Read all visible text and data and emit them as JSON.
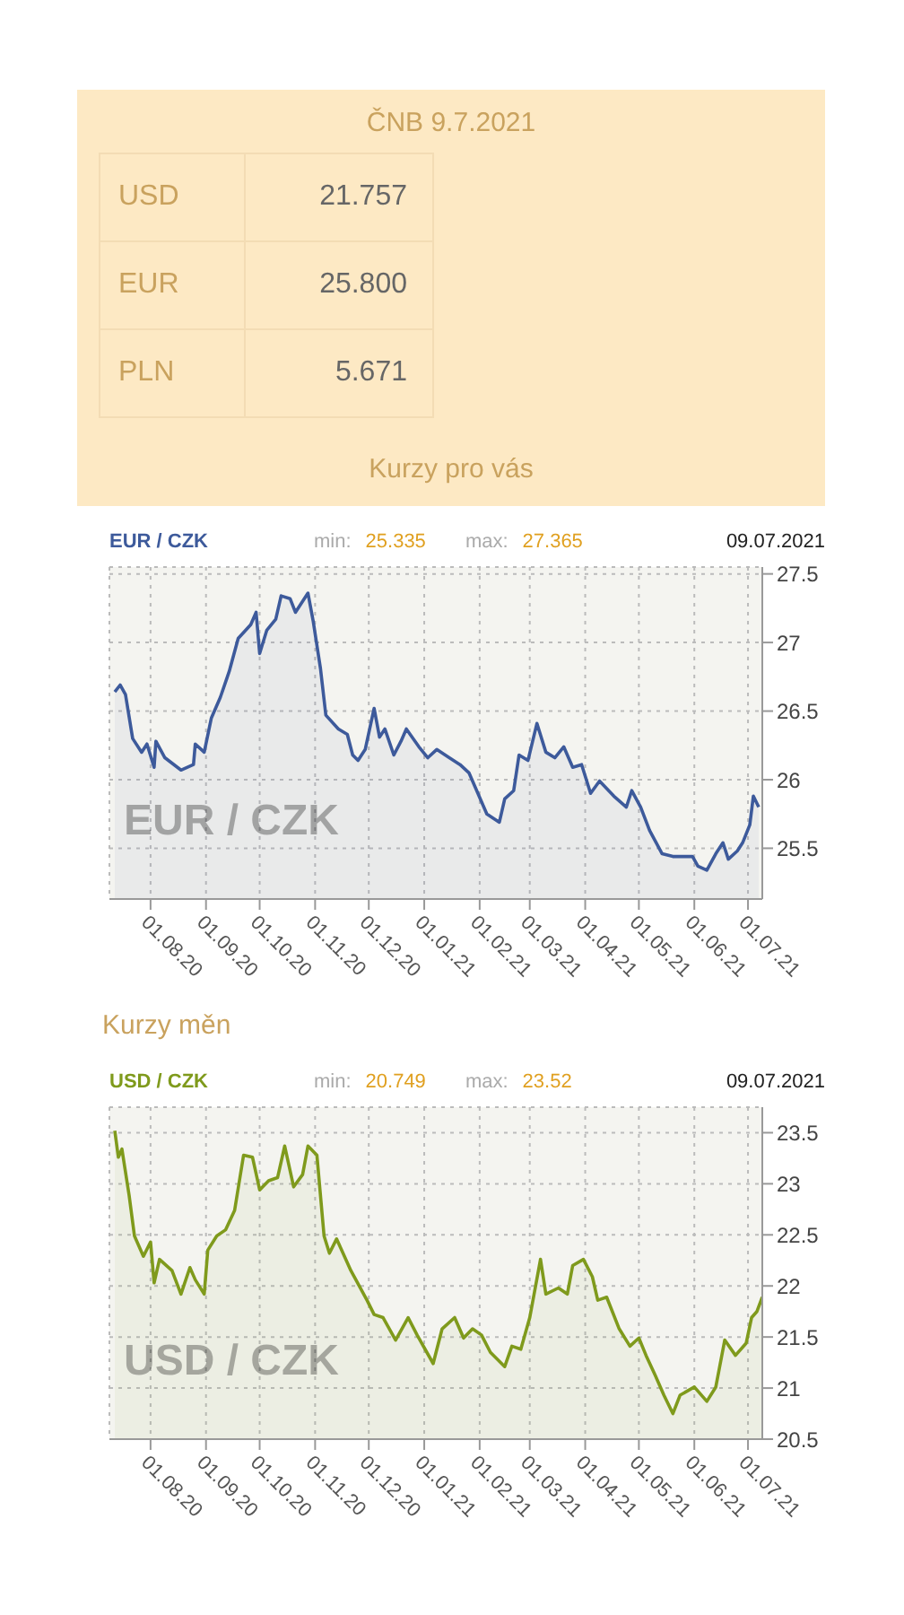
{
  "chart_data": [
    {
      "type": "other",
      "title": "ČNB 9.7.2021",
      "categories": [
        "USD",
        "EUR",
        "PLN"
      ],
      "value_labels": [
        "21.757",
        "25.800",
        "5.671"
      ],
      "annotations": [
        "Kurzy pro vás"
      ]
    },
    {
      "type": "area",
      "title": "EUR / CZK",
      "annotations": [
        "min:",
        "25.335",
        "max:",
        "27.365",
        "09.07.2021",
        "EUR / CZK",
        "Kurzy měn"
      ],
      "xlim": [
        "2020-07-09",
        "2021-07-09"
      ],
      "xticks": [
        {
          "value": "2020-08-01",
          "label": "01.08.20"
        },
        {
          "value": "2020-09-01",
          "label": "01.09.20"
        },
        {
          "value": "2020-10-01",
          "label": "01.10.20"
        },
        {
          "value": "2020-11-01",
          "label": "01.11.20"
        },
        {
          "value": "2020-12-01",
          "label": "01.12.20"
        },
        {
          "value": "2021-01-01",
          "label": "01.01.21"
        },
        {
          "value": "2021-02-01",
          "label": "01.02.21"
        },
        {
          "value": "2021-03-01",
          "label": "01.03.21"
        },
        {
          "value": "2021-04-01",
          "label": "01.04.21"
        },
        {
          "value": "2021-05-01",
          "label": "01.05.21"
        },
        {
          "value": "2021-06-01",
          "label": "01.06.21"
        },
        {
          "value": "2021-07-01",
          "label": "01.07.21"
        }
      ],
      "ylim": [
        25.13,
        27.55
      ],
      "yticks": [
        25.5,
        26,
        26.5,
        27,
        27.5
      ],
      "grid": true,
      "x": [
        "2020-07-12",
        "2020-07-15",
        "2020-07-18",
        "2020-07-22",
        "2020-07-27",
        "2020-07-30",
        "2020-08-03",
        "2020-08-04",
        "2020-08-09",
        "2020-08-18",
        "2020-08-25",
        "2020-08-26",
        "2020-08-31",
        "2020-09-04",
        "2020-09-09",
        "2020-09-14",
        "2020-09-19",
        "2020-09-26",
        "2020-09-29",
        "2020-10-01",
        "2020-10-05",
        "2020-10-10",
        "2020-10-13",
        "2020-10-18",
        "2020-10-21",
        "2020-10-28",
        "2020-10-31",
        "2020-11-04",
        "2020-11-07",
        "2020-11-14",
        "2020-11-19",
        "2020-11-22",
        "2020-11-25",
        "2020-11-29",
        "2020-12-04",
        "2020-12-07",
        "2020-12-10",
        "2020-12-15",
        "2020-12-19",
        "2020-12-22",
        "2020-12-29",
        "2021-01-03",
        "2021-01-08",
        "2021-01-15",
        "2021-01-21",
        "2021-01-26",
        "2021-01-31",
        "2021-02-05",
        "2021-02-12",
        "2021-02-15",
        "2021-02-20",
        "2021-02-23",
        "2021-02-28",
        "2021-03-05",
        "2021-03-10",
        "2021-03-15",
        "2021-03-20",
        "2021-03-25",
        "2021-03-30",
        "2021-04-04",
        "2021-04-09",
        "2021-04-17",
        "2021-04-24",
        "2021-04-27",
        "2021-05-02",
        "2021-05-07",
        "2021-05-14",
        "2021-05-20",
        "2021-05-31",
        "2021-06-03",
        "2021-06-08",
        "2021-06-13",
        "2021-06-17",
        "2021-06-20",
        "2021-06-25",
        "2021-06-28",
        "2021-07-02",
        "2021-07-04",
        "2021-07-07"
      ],
      "series": [
        {
          "color": "#3d5a9b",
          "values": [
            26.64,
            26.69,
            26.62,
            26.3,
            26.2,
            26.26,
            26.09,
            26.28,
            26.16,
            26.07,
            26.11,
            26.26,
            26.2,
            26.45,
            26.6,
            26.79,
            27.03,
            27.13,
            27.22,
            26.92,
            27.09,
            27.17,
            27.34,
            27.32,
            27.22,
            27.36,
            27.15,
            26.81,
            26.47,
            26.37,
            26.33,
            26.18,
            26.14,
            26.22,
            26.52,
            26.31,
            26.37,
            26.18,
            26.28,
            26.37,
            26.24,
            26.16,
            26.22,
            26.16,
            26.11,
            26.05,
            25.9,
            25.75,
            25.69,
            25.86,
            25.92,
            26.18,
            26.14,
            26.41,
            26.2,
            26.16,
            26.24,
            26.09,
            26.11,
            25.9,
            25.99,
            25.88,
            25.8,
            25.92,
            25.8,
            25.63,
            25.46,
            25.44,
            25.44,
            25.37,
            25.34,
            25.46,
            25.54,
            25.42,
            25.48,
            25.54,
            25.67,
            25.88,
            25.8
          ]
        }
      ]
    },
    {
      "type": "area",
      "title": "USD / CZK",
      "annotations": [
        "min:",
        "20.749",
        "max:",
        "23.52",
        "09.07.2021",
        "USD / CZK"
      ],
      "xlim": [
        "2020-07-09",
        "2021-07-09"
      ],
      "xticks": [
        {
          "value": "2020-08-01",
          "label": "01.08.20"
        },
        {
          "value": "2020-09-01",
          "label": "01.09.20"
        },
        {
          "value": "2020-10-01",
          "label": "01.10.20"
        },
        {
          "value": "2020-11-01",
          "label": "01.11.20"
        },
        {
          "value": "2020-12-01",
          "label": "01.12.20"
        },
        {
          "value": "2021-01-01",
          "label": "01.01.21"
        },
        {
          "value": "2021-02-01",
          "label": "01.02.21"
        },
        {
          "value": "2021-03-01",
          "label": "01.03.21"
        },
        {
          "value": "2021-04-01",
          "label": "01.04.21"
        },
        {
          "value": "2021-05-01",
          "label": "01.05.21"
        },
        {
          "value": "2021-06-01",
          "label": "01.06.21"
        },
        {
          "value": "2021-07-01",
          "label": "01.07.21"
        }
      ],
      "ylim": [
        20.5,
        23.75
      ],
      "yticks": [
        20.5,
        21,
        21.5,
        22,
        22.5,
        23,
        23.5
      ],
      "grid": true,
      "x": [
        "2020-07-12",
        "2020-07-14",
        "2020-07-16",
        "2020-07-20",
        "2020-07-23",
        "2020-07-28",
        "2020-08-01",
        "2020-08-03",
        "2020-08-06",
        "2020-08-13",
        "2020-08-18",
        "2020-08-23",
        "2020-08-26",
        "2020-08-31",
        "2020-09-02",
        "2020-09-07",
        "2020-09-12",
        "2020-09-17",
        "2020-09-22",
        "2020-09-27",
        "2020-10-01",
        "2020-10-06",
        "2020-10-11",
        "2020-10-15",
        "2020-10-20",
        "2020-10-25",
        "2020-10-28",
        "2020-11-02",
        "2020-11-06",
        "2020-11-09",
        "2020-11-13",
        "2020-11-21",
        "2020-11-30",
        "2020-12-04",
        "2020-12-09",
        "2020-12-16",
        "2020-12-23",
        "2020-12-28",
        "2021-01-06",
        "2021-01-11",
        "2021-01-18",
        "2021-01-23",
        "2021-01-28",
        "2021-02-02",
        "2021-02-07",
        "2021-02-15",
        "2021-02-19",
        "2021-02-24",
        "2021-03-01",
        "2021-03-07",
        "2021-03-10",
        "2021-03-17",
        "2021-03-22",
        "2021-03-25",
        "2021-03-31",
        "2021-04-05",
        "2021-04-08",
        "2021-04-13",
        "2021-04-20",
        "2021-04-26",
        "2021-05-01",
        "2021-05-05",
        "2021-05-10",
        "2021-05-15",
        "2021-05-20",
        "2021-05-24",
        "2021-06-01",
        "2021-06-08",
        "2021-06-13",
        "2021-06-18",
        "2021-06-24",
        "2021-06-30",
        "2021-07-03",
        "2021-07-06",
        "2021-07-09"
      ],
      "series": [
        {
          "color": "#7f9a1c",
          "values": [
            23.52,
            23.26,
            23.34,
            22.89,
            22.49,
            22.29,
            22.43,
            22.03,
            22.26,
            22.15,
            21.92,
            22.18,
            22.06,
            21.92,
            22.35,
            22.49,
            22.55,
            22.74,
            23.28,
            23.26,
            22.94,
            23.03,
            23.06,
            23.37,
            22.97,
            23.09,
            23.37,
            23.28,
            22.49,
            22.32,
            22.46,
            22.15,
            21.86,
            21.72,
            21.69,
            21.47,
            21.69,
            21.52,
            21.24,
            21.58,
            21.69,
            21.49,
            21.58,
            21.52,
            21.35,
            21.21,
            21.41,
            21.38,
            21.69,
            22.26,
            21.92,
            21.98,
            21.92,
            22.2,
            22.26,
            22.09,
            21.86,
            21.89,
            21.58,
            21.41,
            21.49,
            21.32,
            21.13,
            20.93,
            20.75,
            20.93,
            21.01,
            20.87,
            21.01,
            21.47,
            21.32,
            21.44,
            21.69,
            21.75,
            21.89
          ]
        }
      ]
    }
  ]
}
